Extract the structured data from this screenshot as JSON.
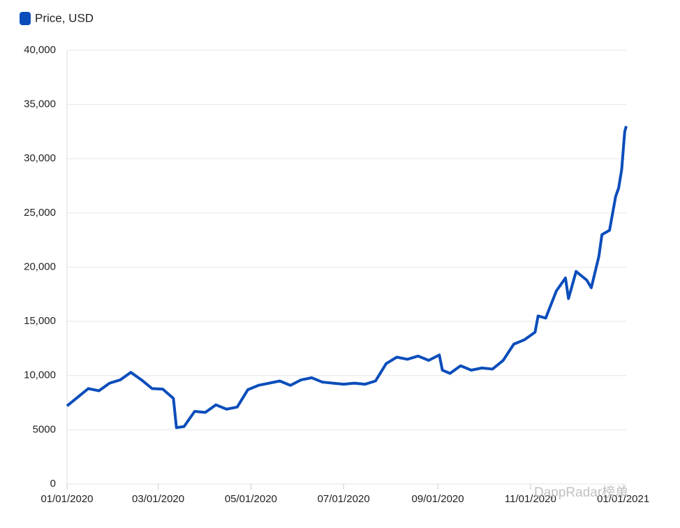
{
  "chart_data": {
    "type": "line",
    "series": [
      {
        "name": "Price, USD",
        "color": "#0b4dbb",
        "values": [
          7200,
          8000,
          8800,
          8600,
          9300,
          9600,
          10300,
          9600,
          8800,
          8750,
          7900,
          5200,
          5300,
          6700,
          6600,
          7300,
          6900,
          7100,
          8700,
          9100,
          9300,
          9500,
          9100,
          9600,
          9800,
          9400,
          9300,
          9200,
          9300,
          9200,
          9500,
          11100,
          11700,
          11500,
          11800,
          11400,
          11900,
          10500,
          10200,
          10900,
          10500,
          10700,
          10600,
          11400,
          12900,
          13300,
          14000,
          15500,
          15300,
          17800,
          19000,
          17100,
          19600,
          18800,
          18100,
          21000,
          23000,
          23400,
          26500,
          27300,
          29000,
          32500,
          33000
        ]
      }
    ],
    "x": [
      "01/01/2020",
      "01/08/2020",
      "01/15/2020",
      "01/22/2020",
      "01/29/2020",
      "02/05/2020",
      "02/12/2020",
      "02/19/2020",
      "02/26/2020",
      "03/04/2020",
      "03/11/2020",
      "03/13/2020",
      "03/18/2020",
      "03/25/2020",
      "04/01/2020",
      "04/08/2020",
      "04/15/2020",
      "04/22/2020",
      "04/29/2020",
      "05/06/2020",
      "05/13/2020",
      "05/20/2020",
      "05/27/2020",
      "06/03/2020",
      "06/10/2020",
      "06/17/2020",
      "06/24/2020",
      "07/01/2020",
      "07/08/2020",
      "07/15/2020",
      "07/22/2020",
      "07/29/2020",
      "08/05/2020",
      "08/12/2020",
      "08/19/2020",
      "08/26/2020",
      "09/02/2020",
      "09/04/2020",
      "09/09/2020",
      "09/16/2020",
      "09/23/2020",
      "09/30/2020",
      "10/07/2020",
      "10/14/2020",
      "10/21/2020",
      "10/28/2020",
      "11/04/2020",
      "11/06/2020",
      "11/11/2020",
      "11/18/2020",
      "11/24/2020",
      "11/26/2020",
      "12/01/2020",
      "12/08/2020",
      "12/11/2020",
      "12/16/2020",
      "12/18/2020",
      "12/23/2020",
      "12/27/2020",
      "12/29/2020",
      "12/31/2020",
      "01/02/2021",
      "01/03/2021"
    ],
    "xlim": [
      "01/01/2020",
      "01/03/2021"
    ],
    "xticks": [
      "01/01/2020",
      "03/01/2020",
      "05/01/2020",
      "07/01/2020",
      "09/01/2020",
      "11/01/2020",
      "01/01/2021"
    ],
    "ylim": [
      0,
      40000
    ],
    "yticks": [
      0,
      5000,
      {
        "value": 10000,
        "label": "10,000"
      },
      {
        "value": 15000,
        "label": "15,000"
      },
      {
        "value": 20000,
        "label": "20,000"
      },
      {
        "value": 25000,
        "label": "25,000"
      },
      {
        "value": 30000,
        "label": "30,000"
      },
      {
        "value": 35000,
        "label": "35,000"
      },
      {
        "value": 40000,
        "label": "40,000"
      }
    ],
    "grid": true,
    "legend": "top-left",
    "watermark": "DappRadar榜单"
  }
}
